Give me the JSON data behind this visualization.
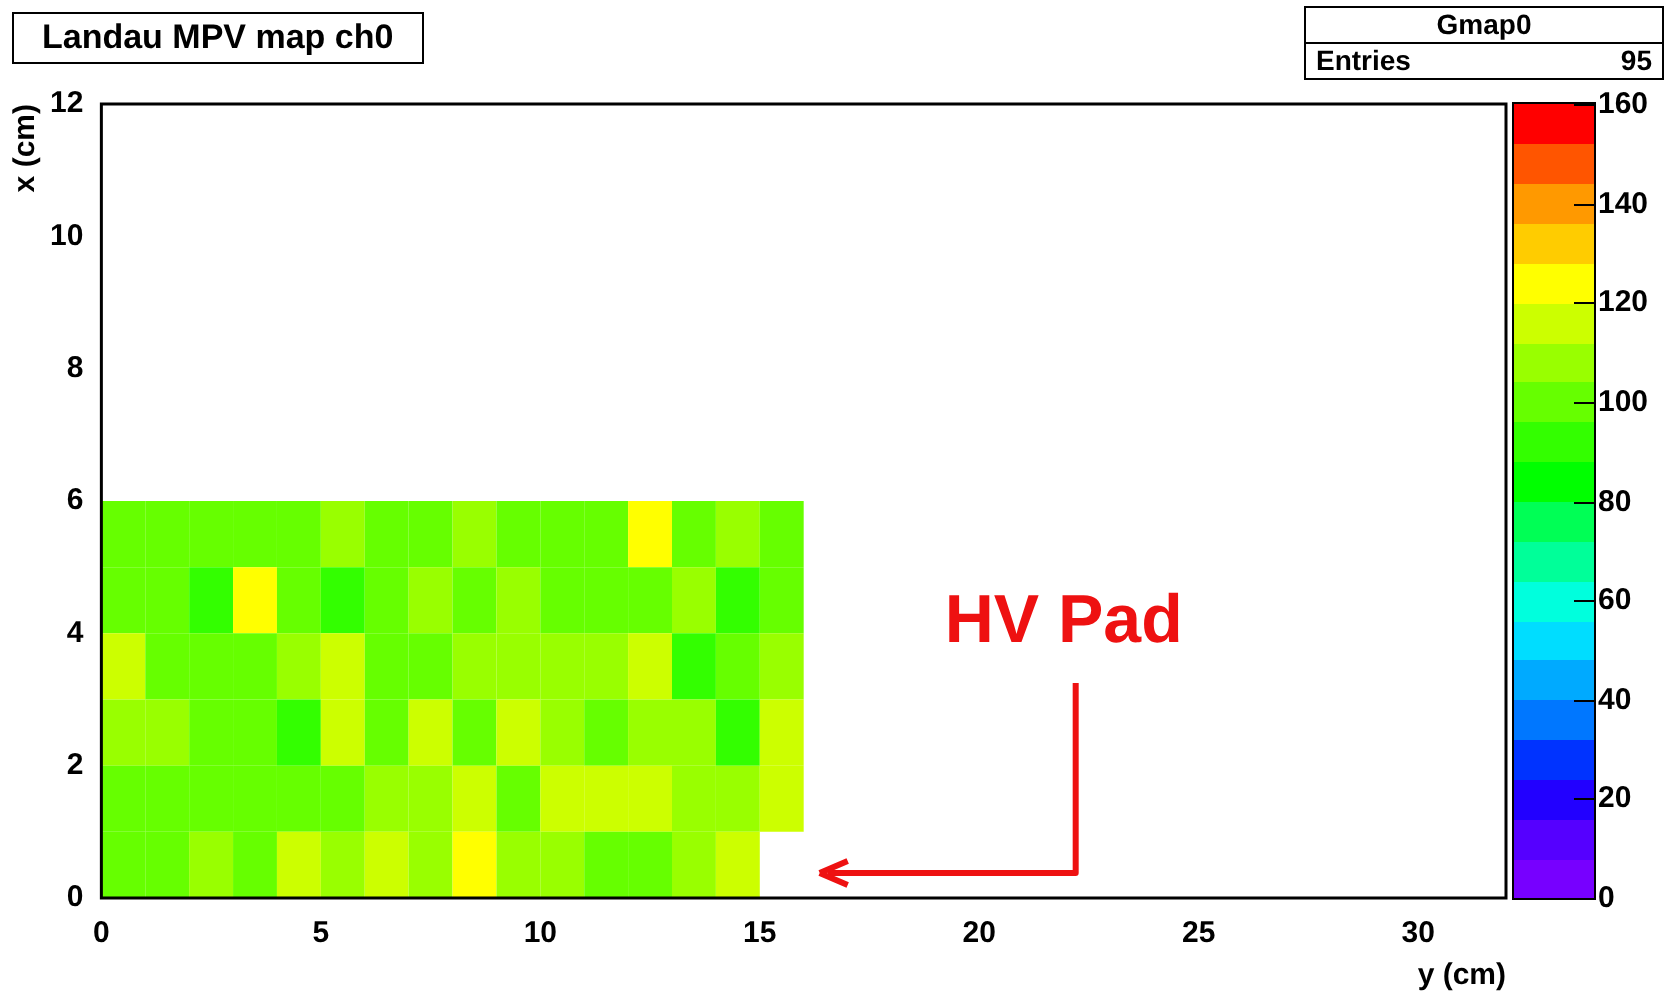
{
  "chart_data": {
    "type": "heatmap",
    "title": "Landau MPV map ch0",
    "xlabel": "y (cm)",
    "ylabel": "x (cm)",
    "x": [
      0.5,
      1.5,
      2.5,
      3.5,
      4.5,
      5.5,
      6.5,
      7.5,
      8.5,
      9.5,
      10.5,
      11.5,
      12.5,
      13.5,
      14.5,
      15.5
    ],
    "y": [
      5.5,
      4.5,
      3.5,
      2.5,
      1.5,
      0.5
    ],
    "cells": [
      [
        100,
        100,
        100,
        100,
        100,
        108,
        100,
        100,
        108,
        100,
        100,
        100,
        124,
        100,
        108,
        100
      ],
      [
        100,
        100,
        92,
        120,
        100,
        92,
        100,
        108,
        100,
        108,
        100,
        100,
        100,
        108,
        92,
        100
      ],
      [
        116,
        100,
        100,
        100,
        108,
        116,
        100,
        100,
        108,
        108,
        108,
        108,
        116,
        92,
        100,
        108
      ],
      [
        108,
        108,
        100,
        100,
        92,
        116,
        100,
        116,
        100,
        116,
        108,
        100,
        108,
        108,
        92,
        116
      ],
      [
        100,
        100,
        100,
        100,
        100,
        100,
        108,
        108,
        116,
        100,
        116,
        116,
        116,
        108,
        108,
        116
      ],
      [
        100,
        100,
        108,
        100,
        116,
        108,
        116,
        108,
        124,
        108,
        108,
        100,
        100,
        108,
        116,
        null
      ]
    ],
    "xlim": [
      0,
      32
    ],
    "xticks": [
      0,
      5,
      10,
      15,
      20,
      25,
      30
    ],
    "ylim": [
      0,
      12
    ],
    "yticks": [
      0,
      2,
      4,
      6,
      8,
      10,
      12
    ],
    "clim": [
      0,
      160
    ],
    "cticks": [
      0,
      20,
      40,
      60,
      80,
      100,
      120,
      140,
      160
    ],
    "annotations": [
      "HV Pad",
      "Gmap0",
      "Entries",
      "95"
    ]
  }
}
